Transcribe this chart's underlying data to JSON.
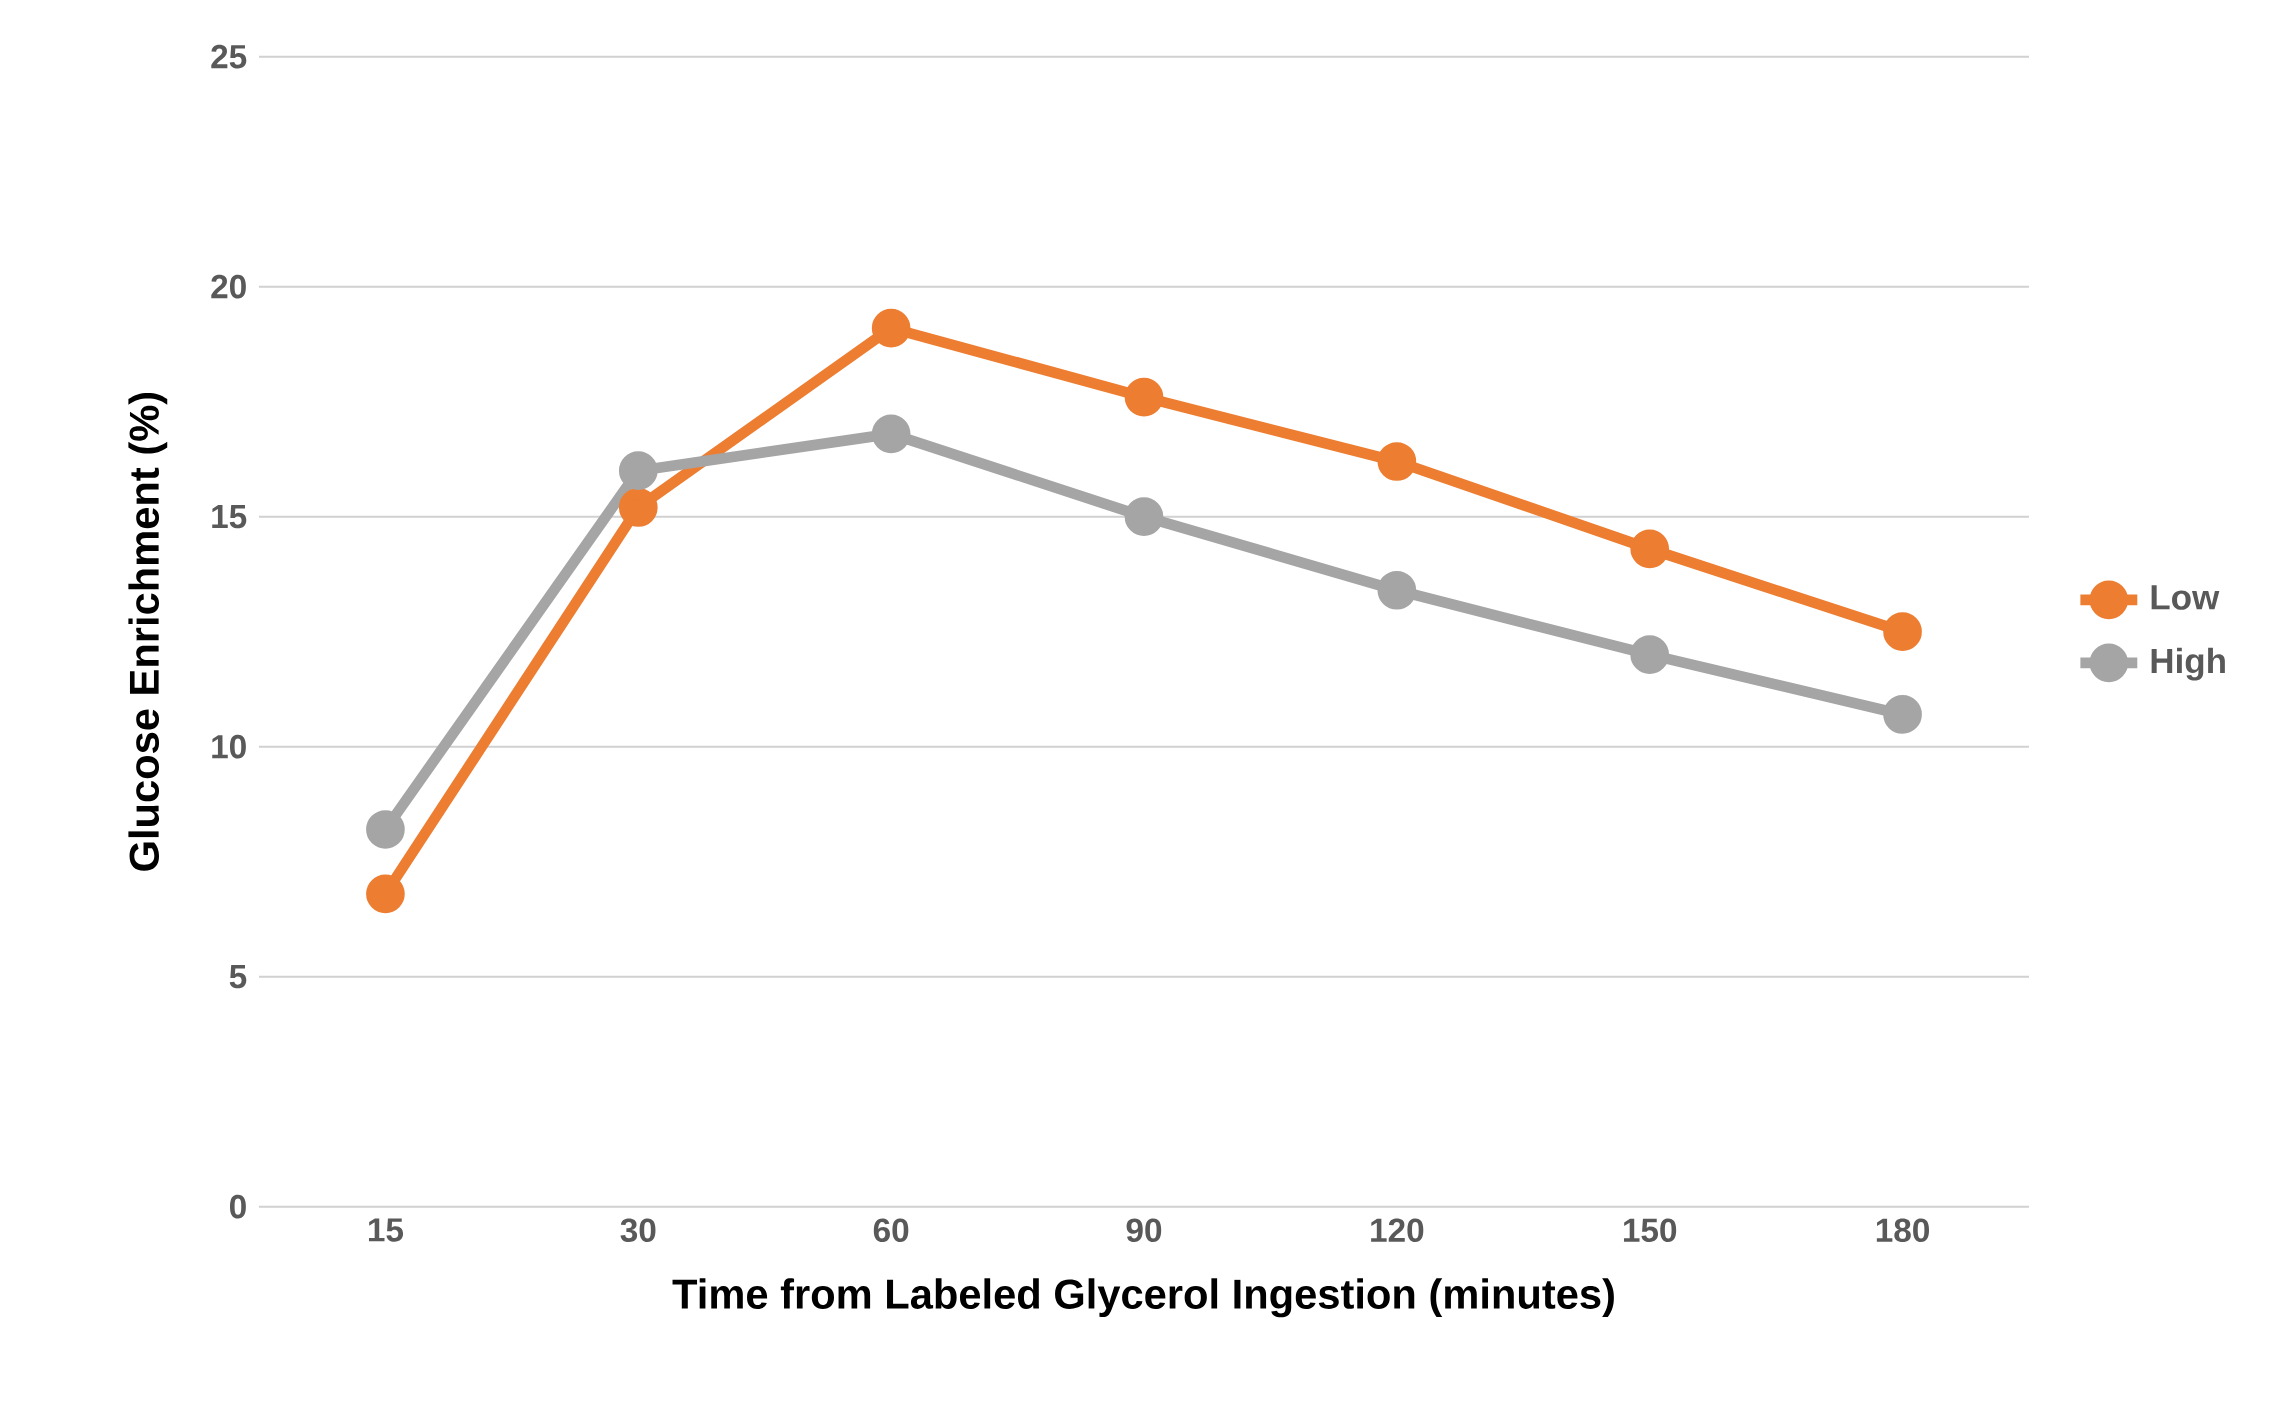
{
  "chart_data": {
    "type": "line",
    "xlabel": "Time from Labeled Glycerol Ingestion (minutes)",
    "ylabel": "Glucose Enrichment (%)",
    "categories": [
      "15",
      "30",
      "60",
      "90",
      "120",
      "150",
      "180"
    ],
    "series": [
      {
        "name": "Low",
        "color": "#ed7d31",
        "values": [
          6.8,
          15.2,
          19.1,
          17.6,
          16.2,
          14.3,
          12.5
        ]
      },
      {
        "name": "High",
        "color": "#a5a5a5",
        "values": [
          8.2,
          16.0,
          16.8,
          15.0,
          13.4,
          12.0,
          10.7
        ]
      }
    ],
    "ylim": [
      0,
      25
    ],
    "yticks": [
      0,
      5,
      10,
      15,
      20,
      25
    ],
    "grid": "y",
    "legend": "right",
    "marker": "circle"
  }
}
